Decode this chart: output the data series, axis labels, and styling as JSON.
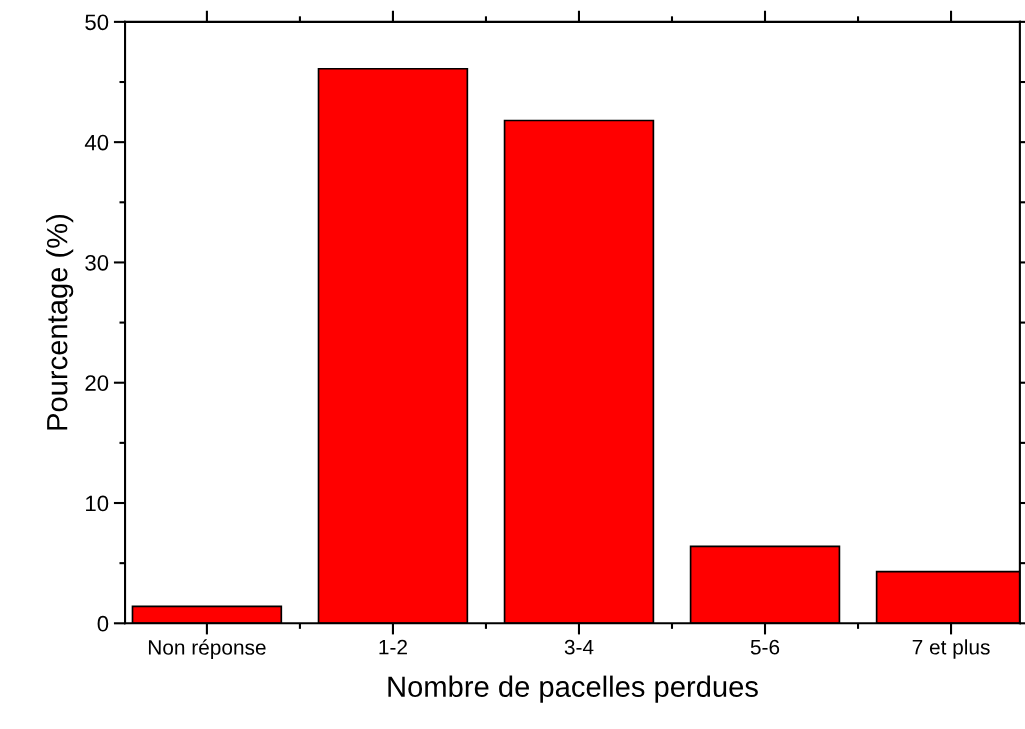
{
  "chart_data": {
    "type": "bar",
    "xlabel": "Nombre de pacelles perdues",
    "ylabel": "Pourcentage (%)",
    "categories": [
      "Non réponse",
      "1-2",
      "3-4",
      "5-6",
      "7 et plus"
    ],
    "values": [
      1.4,
      46.1,
      41.8,
      6.4,
      4.3
    ],
    "color": "#ff0000",
    "ylim": [
      0,
      50
    ],
    "yticks": [
      0,
      10,
      20,
      30,
      40,
      50
    ],
    "grid": false,
    "legend": false
  }
}
